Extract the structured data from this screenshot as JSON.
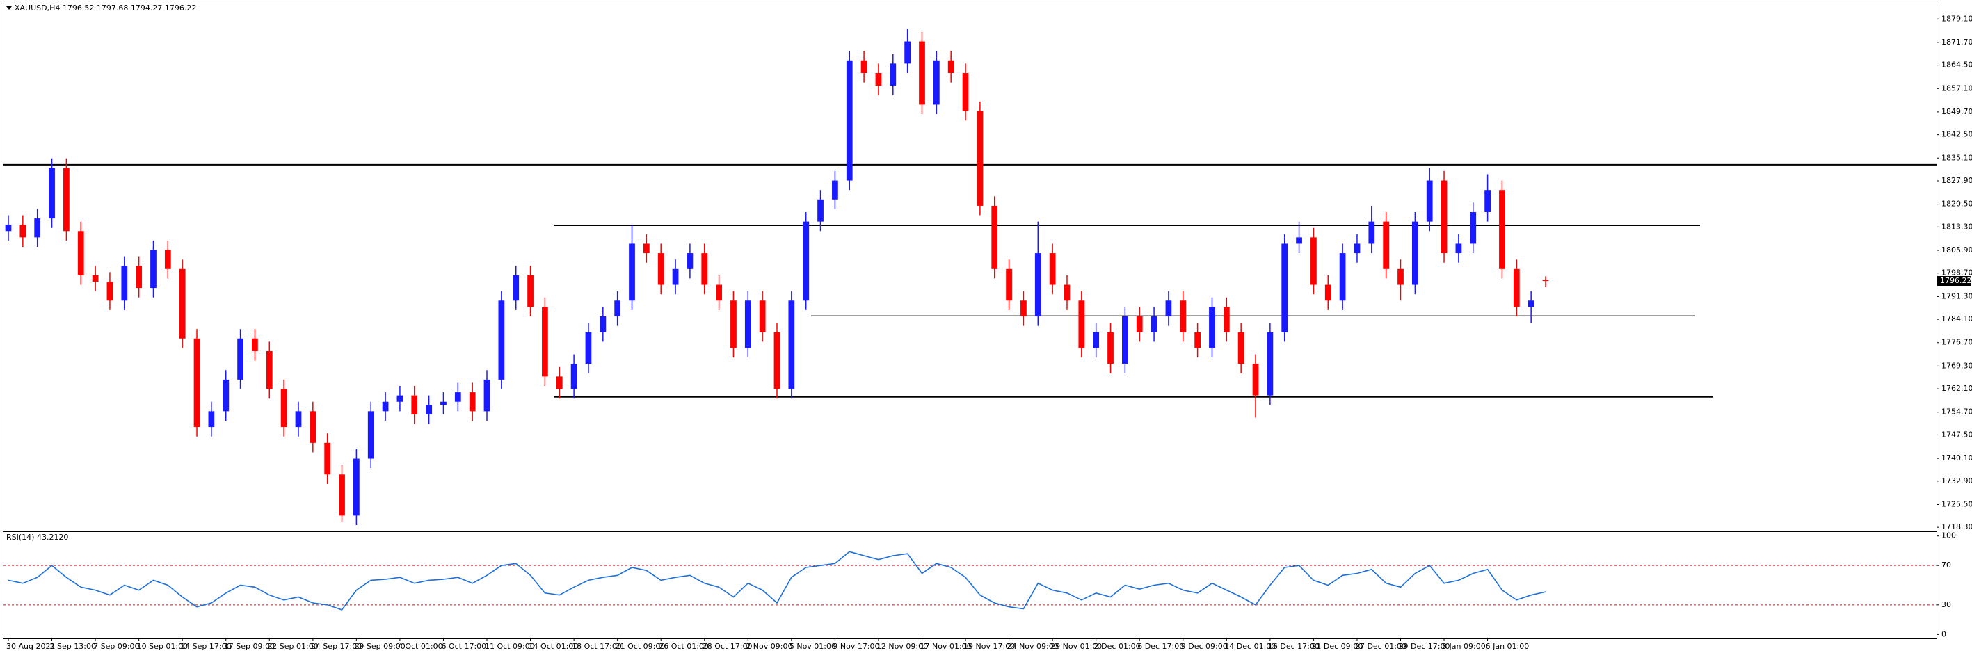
{
  "chart_data": {
    "type": "candlestick",
    "title": "XAUUSD,H4  1796.52 1797.68 1794.27 1796.22",
    "bull_color": "#1a1aff",
    "bear_color": "#ff0000",
    "level_color": "#000000",
    "ylim": [
      1717.9,
      1884.0
    ],
    "yticks": [
      {
        "value": 1879.1,
        "label": "1879.10"
      },
      {
        "value": 1871.7,
        "label": "1871.70"
      },
      {
        "value": 1864.5,
        "label": "1864.50"
      },
      {
        "value": 1857.1,
        "label": "1857.10"
      },
      {
        "value": 1849.7,
        "label": "1849.70"
      },
      {
        "value": 1842.5,
        "label": "1842.50"
      },
      {
        "value": 1835.1,
        "label": "1835.10"
      },
      {
        "value": 1827.9,
        "label": "1827.90"
      },
      {
        "value": 1820.5,
        "label": "1820.50"
      },
      {
        "value": 1813.3,
        "label": "1813.30"
      },
      {
        "value": 1805.9,
        "label": "1805.90"
      },
      {
        "value": 1798.7,
        "label": "1798.70"
      },
      {
        "value": 1791.3,
        "label": "1791.30"
      },
      {
        "value": 1784.1,
        "label": "1784.10"
      },
      {
        "value": 1776.7,
        "label": "1776.70"
      },
      {
        "value": 1769.3,
        "label": "1769.30"
      },
      {
        "value": 1762.1,
        "label": "1762.10"
      },
      {
        "value": 1754.7,
        "label": "1754.70"
      },
      {
        "value": 1747.5,
        "label": "1747.50"
      },
      {
        "value": 1740.1,
        "label": "1740.10"
      },
      {
        "value": 1732.9,
        "label": "1732.90"
      },
      {
        "value": 1725.5,
        "label": "1725.50"
      },
      {
        "value": 1718.3,
        "label": "1718.30"
      }
    ],
    "price_tag": {
      "value": 1796.22,
      "label": "1796.22"
    },
    "levels": [
      1833.0,
      1813.7,
      1785.2,
      1759.6
    ],
    "xlabels": [
      "30 Aug 2021",
      "2 Sep 13:00",
      "7 Sep 09:00",
      "10 Sep 01:00",
      "14 Sep 17:00",
      "17 Sep 09:00",
      "22 Sep 01:00",
      "24 Sep 17:00",
      "29 Sep 09:00",
      "4 Oct 01:00",
      "6 Oct 17:00",
      "11 Oct 09:00",
      "14 Oct 01:00",
      "18 Oct 17:00",
      "21 Oct 09:00",
      "26 Oct 01:00",
      "28 Oct 17:00",
      "2 Nov 09:00",
      "5 Nov 01:00",
      "9 Nov 17:00",
      "12 Nov 09:00",
      "17 Nov 01:00",
      "19 Nov 17:00",
      "24 Nov 09:00",
      "29 Nov 01:00",
      "2 Dec 01:00",
      "6 Dec 17:00",
      "9 Dec 09:00",
      "14 Dec 01:00",
      "16 Dec 17:00",
      "21 Dec 09:00",
      "27 Dec 01:00",
      "29 Dec 17:00",
      "3 Jan 09:00",
      "6 Jan 01:00"
    ],
    "open": [
      1812,
      1814,
      1810,
      1816,
      1832,
      1812,
      1798,
      1796,
      1790,
      1801,
      1794,
      1806,
      1800,
      1778,
      1750,
      1755,
      1765,
      1778,
      1774,
      1762,
      1750,
      1755,
      1745,
      1735,
      1722,
      1740,
      1755,
      1758,
      1760,
      1754,
      1757,
      1758,
      1761,
      1755,
      1765,
      1790,
      1798,
      1788,
      1766,
      1762,
      1770,
      1780,
      1785,
      1790,
      1808,
      1805,
      1795,
      1800,
      1805,
      1795,
      1790,
      1775,
      1790,
      1780,
      1762,
      1790,
      1815,
      1822,
      1828,
      1866,
      1862,
      1858,
      1865,
      1872,
      1852,
      1866,
      1862,
      1850,
      1820,
      1800,
      1790,
      1785,
      1805,
      1795,
      1790,
      1775,
      1780,
      1770,
      1785,
      1780,
      1785,
      1790,
      1780,
      1775,
      1788,
      1780,
      1770,
      1760,
      1780,
      1808,
      1810,
      1795,
      1790,
      1805,
      1808,
      1815,
      1800,
      1795,
      1815,
      1828,
      1805,
      1808,
      1818,
      1825,
      1800,
      1788,
      1796.52
    ],
    "high": [
      1817,
      1817,
      1819,
      1835,
      1835,
      1815,
      1801,
      1799,
      1804,
      1804,
      1809,
      1809,
      1803,
      1781,
      1758,
      1768,
      1781,
      1781,
      1777,
      1765,
      1758,
      1758,
      1748,
      1738,
      1743,
      1758,
      1761,
      1763,
      1763,
      1760,
      1761,
      1764,
      1764,
      1768,
      1793,
      1801,
      1801,
      1791,
      1769,
      1773,
      1783,
      1788,
      1793,
      1814,
      1811,
      1808,
      1803,
      1808,
      1808,
      1798,
      1793,
      1793,
      1793,
      1783,
      1793,
      1818,
      1825,
      1831,
      1869,
      1869,
      1865,
      1868,
      1876,
      1875,
      1869,
      1869,
      1865,
      1853,
      1823,
      1803,
      1793,
      1815,
      1808,
      1798,
      1793,
      1783,
      1783,
      1788,
      1788,
      1788,
      1793,
      1793,
      1783,
      1791,
      1791,
      1783,
      1773,
      1783,
      1811,
      1815,
      1813,
      1798,
      1808,
      1811,
      1820,
      1818,
      1803,
      1818,
      1832,
      1831,
      1811,
      1821,
      1830,
      1828,
      1803,
      1793,
      1797.68
    ],
    "low": [
      1809,
      1807,
      1807,
      1813,
      1809,
      1795,
      1793,
      1787,
      1787,
      1791,
      1791,
      1797,
      1775,
      1747,
      1747,
      1752,
      1762,
      1771,
      1759,
      1747,
      1747,
      1742,
      1732,
      1720,
      1719,
      1737,
      1752,
      1755,
      1751,
      1751,
      1754,
      1755,
      1752,
      1752,
      1762,
      1787,
      1785,
      1763,
      1759,
      1759,
      1767,
      1777,
      1782,
      1787,
      1802,
      1792,
      1792,
      1797,
      1792,
      1787,
      1772,
      1772,
      1777,
      1759,
      1759,
      1787,
      1812,
      1819,
      1825,
      1859,
      1855,
      1855,
      1862,
      1849,
      1849,
      1859,
      1847,
      1817,
      1797,
      1787,
      1782,
      1782,
      1792,
      1787,
      1772,
      1772,
      1767,
      1767,
      1777,
      1777,
      1782,
      1777,
      1772,
      1772,
      1777,
      1767,
      1753,
      1757,
      1777,
      1805,
      1792,
      1787,
      1787,
      1802,
      1805,
      1797,
      1790,
      1792,
      1812,
      1802,
      1802,
      1805,
      1815,
      1797,
      1785,
      1783,
      1794.27
    ],
    "close": [
      1814,
      1810,
      1816,
      1832,
      1812,
      1798,
      1796,
      1790,
      1801,
      1794,
      1806,
      1800,
      1778,
      1750,
      1755,
      1765,
      1778,
      1774,
      1762,
      1750,
      1755,
      1745,
      1735,
      1722,
      1740,
      1755,
      1758,
      1760,
      1754,
      1757,
      1758,
      1761,
      1755,
      1765,
      1790,
      1798,
      1788,
      1766,
      1762,
      1770,
      1780,
      1785,
      1790,
      1808,
      1805,
      1795,
      1800,
      1805,
      1795,
      1790,
      1775,
      1790,
      1780,
      1762,
      1790,
      1815,
      1822,
      1828,
      1866,
      1862,
      1858,
      1865,
      1872,
      1852,
      1866,
      1862,
      1850,
      1820,
      1800,
      1790,
      1785,
      1805,
      1795,
      1790,
      1775,
      1780,
      1770,
      1785,
      1780,
      1785,
      1790,
      1780,
      1775,
      1788,
      1780,
      1770,
      1760,
      1780,
      1808,
      1810,
      1795,
      1790,
      1805,
      1808,
      1815,
      1800,
      1795,
      1815,
      1828,
      1805,
      1808,
      1818,
      1825,
      1800,
      1788,
      1790,
      1796.22
    ],
    "rsi": {
      "title": "RSI(14) 43.2120",
      "color": "#1e6fd9",
      "level_color": "#ff0000",
      "ylim": [
        -4,
        104
      ],
      "yticks": [
        100,
        70,
        30,
        0
      ],
      "levels": [
        70,
        30
      ],
      "values": [
        55,
        52,
        58,
        70,
        58,
        48,
        45,
        40,
        50,
        45,
        55,
        50,
        38,
        28,
        32,
        42,
        50,
        48,
        40,
        35,
        38,
        32,
        30,
        25,
        45,
        55,
        56,
        58,
        52,
        55,
        56,
        58,
        52,
        60,
        70,
        72,
        60,
        42,
        40,
        48,
        55,
        58,
        60,
        68,
        65,
        55,
        58,
        60,
        52,
        48,
        38,
        52,
        45,
        32,
        58,
        68,
        70,
        72,
        84,
        80,
        76,
        80,
        82,
        62,
        72,
        68,
        58,
        40,
        32,
        28,
        26,
        52,
        45,
        42,
        35,
        42,
        38,
        50,
        46,
        50,
        52,
        45,
        42,
        52,
        45,
        38,
        30,
        50,
        68,
        70,
        55,
        50,
        60,
        62,
        66,
        52,
        48,
        62,
        70,
        52,
        55,
        62,
        66,
        45,
        35,
        40,
        43.21
      ]
    }
  }
}
